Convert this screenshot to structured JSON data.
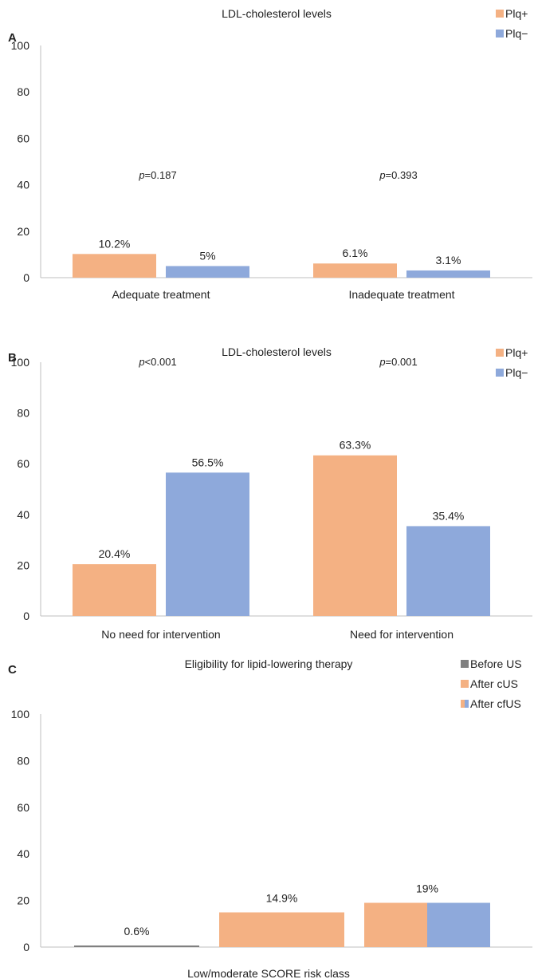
{
  "chart_data": [
    {
      "type": "bar",
      "panel_label": "A",
      "title": "LDL-cholesterol levels",
      "ylim": [
        0,
        100
      ],
      "yticks": [
        0,
        20,
        40,
        60,
        80,
        100
      ],
      "categories": [
        "Adequate treatment",
        "Inadequate treatment"
      ],
      "series": [
        {
          "name": "Plq+",
          "color": "#F4B183",
          "values": [
            10.2,
            6.1
          ],
          "labels": [
            "10.2%",
            "6.1%"
          ]
        },
        {
          "name": "Plq−",
          "color": "#8EA9DB",
          "values": [
            5,
            3.1
          ],
          "labels": [
            "5%",
            "3.1%"
          ]
        }
      ],
      "annotations": [
        {
          "p_italic": "p",
          "text": "=0.187"
        },
        {
          "p_italic": "p",
          "text": "=0.393"
        }
      ],
      "legend": "top-right"
    },
    {
      "type": "bar",
      "panel_label": "B",
      "title": "LDL-cholesterol levels",
      "ylim": [
        0,
        100
      ],
      "yticks": [
        0,
        20,
        40,
        60,
        80,
        100
      ],
      "categories": [
        "No need for intervention",
        "Need for intervention"
      ],
      "series": [
        {
          "name": "Plq+",
          "color": "#F4B183",
          "values": [
            20.4,
            63.3
          ],
          "labels": [
            "20.4%",
            "63.3%"
          ]
        },
        {
          "name": "Plq−",
          "color": "#8EA9DB",
          "values": [
            56.5,
            35.4
          ],
          "labels": [
            "56.5%",
            "35.4%"
          ]
        }
      ],
      "annotations": [
        {
          "p_italic": "p",
          "text": "<0.001"
        },
        {
          "p_italic": "p",
          "text": "=0.001"
        }
      ],
      "legend": "top-right"
    },
    {
      "type": "bar",
      "panel_label": "C",
      "title": "Eligibility for lipid-lowering therapy",
      "ylim": [
        0,
        100
      ],
      "yticks": [
        0,
        20,
        40,
        60,
        80,
        100
      ],
      "categories": [
        "Low/moderate SCORE risk class"
      ],
      "series": [
        {
          "name": "Before US",
          "color": "#808080",
          "values": [
            0.6
          ],
          "labels": [
            "0.6%"
          ]
        },
        {
          "name": "After cUS",
          "color": "#F4B183",
          "values": [
            14.9
          ],
          "labels": [
            "14.9%"
          ]
        },
        {
          "name": "After cfUS",
          "color": "#F4B183",
          "color2": "#8EA9DB",
          "values": [
            19
          ],
          "labels": [
            "19%"
          ]
        }
      ],
      "legend": "top-right"
    }
  ]
}
